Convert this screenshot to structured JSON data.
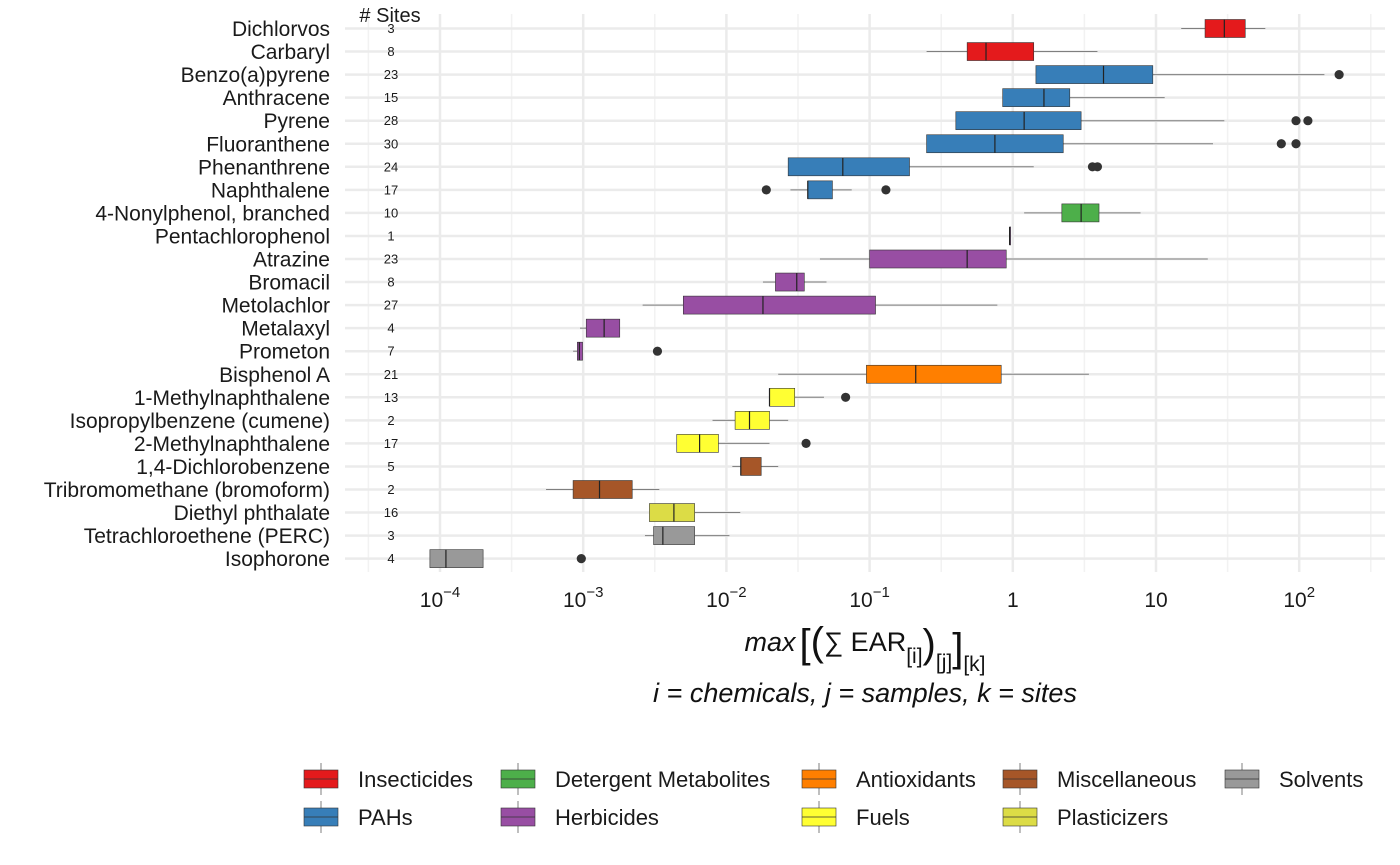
{
  "chart_data": {
    "type": "boxplot",
    "orientation": "horizontal",
    "x_scale": "log10",
    "xlim": [
      3e-05,
      450
    ],
    "grid": true,
    "legend_position": "bottom",
    "sites_header": "# Sites",
    "x_ticks": [
      {
        "value": 0.0001,
        "base": "10",
        "exp": "−4"
      },
      {
        "value": 0.001,
        "base": "10",
        "exp": "−3"
      },
      {
        "value": 0.01,
        "base": "10",
        "exp": "−2"
      },
      {
        "value": 0.1,
        "base": "10",
        "exp": "−1"
      },
      {
        "value": 1,
        "base": "1",
        "exp": ""
      },
      {
        "value": 10,
        "base": "10",
        "exp": ""
      },
      {
        "value": 100,
        "base": "10",
        "exp": "2"
      }
    ],
    "xlabel": {
      "max": "max",
      "sum": "∑ EAR",
      "sub_i": "[i]",
      "sub_j": "[j]",
      "sub_k": "[k]"
    },
    "xlabel_sub": "i = chemicals, j = samples, k = sites",
    "groups": [
      {
        "name": "Insecticides",
        "color": "#E41A1C"
      },
      {
        "name": "PAHs",
        "color": "#377EB8"
      },
      {
        "name": "Detergent Metabolites",
        "color": "#4DAF4A"
      },
      {
        "name": "Herbicides",
        "color": "#984EA3"
      },
      {
        "name": "Antioxidants",
        "color": "#FF7F00"
      },
      {
        "name": "Fuels",
        "color": "#FFFF33"
      },
      {
        "name": "Miscellaneous",
        "color": "#A65628"
      },
      {
        "name": "Plasticizers",
        "color": "#DCDC46"
      },
      {
        "name": "Solvents",
        "color": "#999999"
      }
    ],
    "chemicals": [
      {
        "name": "Dichlorvos",
        "sites": "3",
        "group": "Insecticides",
        "whisker_low": 15,
        "q1": 22,
        "median": 30,
        "q3": 42,
        "whisker_high": 58,
        "outliers": []
      },
      {
        "name": "Carbaryl",
        "sites": "8",
        "group": "Insecticides",
        "whisker_low": 0.25,
        "q1": 0.48,
        "median": 0.65,
        "q3": 1.4,
        "whisker_high": 3.9,
        "outliers": []
      },
      {
        "name": "Benzo(a)pyrene",
        "sites": "23",
        "group": "PAHs",
        "whisker_low": 1.45,
        "q1": 1.45,
        "median": 4.3,
        "q3": 9.5,
        "whisker_high": 150,
        "outliers": [
          190
        ]
      },
      {
        "name": "Anthracene",
        "sites": "15",
        "group": "PAHs",
        "whisker_low": 0.85,
        "q1": 0.85,
        "median": 1.65,
        "q3": 2.5,
        "whisker_high": 11.5,
        "outliers": []
      },
      {
        "name": "Pyrene",
        "sites": "28",
        "group": "PAHs",
        "whisker_low": 0.4,
        "q1": 0.4,
        "median": 1.2,
        "q3": 3.0,
        "whisker_high": 30,
        "outliers": [
          95,
          115
        ]
      },
      {
        "name": "Fluoranthene",
        "sites": "30",
        "group": "PAHs",
        "whisker_low": 0.25,
        "q1": 0.25,
        "median": 0.75,
        "q3": 2.25,
        "whisker_high": 25,
        "outliers": [
          75,
          95
        ]
      },
      {
        "name": "Phenanthrene",
        "sites": "24",
        "group": "PAHs",
        "whisker_low": 0.027,
        "q1": 0.027,
        "median": 0.065,
        "q3": 0.19,
        "whisker_high": 1.4,
        "outliers": [
          3.6,
          3.9
        ]
      },
      {
        "name": "Naphthalene",
        "sites": "17",
        "group": "PAHs",
        "whisker_low": 0.028,
        "q1": 0.037,
        "median": 0.037,
        "q3": 0.055,
        "whisker_high": 0.075,
        "outliers": [
          0.019,
          0.13
        ]
      },
      {
        "name": "4-Nonylphenol, branched",
        "sites": "10",
        "group": "Detergent Metabolites",
        "whisker_low": 1.2,
        "q1": 2.2,
        "median": 3.0,
        "q3": 4.0,
        "whisker_high": 7.8,
        "outliers": []
      },
      {
        "name": "Pentachlorophenol",
        "sites": "1",
        "group": "Herbicides",
        "whisker_low": 0.95,
        "q1": 0.95,
        "median": 0.95,
        "q3": 0.95,
        "whisker_high": 0.95,
        "outliers": []
      },
      {
        "name": "Atrazine",
        "sites": "23",
        "group": "Herbicides",
        "whisker_low": 0.045,
        "q1": 0.1,
        "median": 0.48,
        "q3": 0.9,
        "whisker_high": 23,
        "outliers": []
      },
      {
        "name": "Bromacil",
        "sites": "8",
        "group": "Herbicides",
        "whisker_low": 0.018,
        "q1": 0.022,
        "median": 0.031,
        "q3": 0.035,
        "whisker_high": 0.05,
        "outliers": []
      },
      {
        "name": "Metolachlor",
        "sites": "27",
        "group": "Herbicides",
        "whisker_low": 0.0026,
        "q1": 0.005,
        "median": 0.018,
        "q3": 0.11,
        "whisker_high": 0.78,
        "outliers": []
      },
      {
        "name": "Metalaxyl",
        "sites": "4",
        "group": "Herbicides",
        "whisker_low": 0.00095,
        "q1": 0.00105,
        "median": 0.0014,
        "q3": 0.0018,
        "whisker_high": 0.0018,
        "outliers": []
      },
      {
        "name": "Prometon",
        "sites": "7",
        "group": "Herbicides",
        "whisker_low": 0.00085,
        "q1": 0.00091,
        "median": 0.00094,
        "q3": 0.00099,
        "whisker_high": 0.00099,
        "outliers": [
          0.0033
        ]
      },
      {
        "name": "Bisphenol A",
        "sites": "21",
        "group": "Antioxidants",
        "whisker_low": 0.023,
        "q1": 0.095,
        "median": 0.21,
        "q3": 0.83,
        "whisker_high": 3.4,
        "outliers": []
      },
      {
        "name": "1-Methylnaphthalene",
        "sites": "13",
        "group": "Fuels",
        "whisker_low": 0.02,
        "q1": 0.02,
        "median": 0.02,
        "q3": 0.03,
        "whisker_high": 0.048,
        "outliers": [
          0.068
        ]
      },
      {
        "name": "Isopropylbenzene (cumene)",
        "sites": "2",
        "group": "Fuels",
        "whisker_low": 0.008,
        "q1": 0.0115,
        "median": 0.0145,
        "q3": 0.02,
        "whisker_high": 0.027,
        "outliers": []
      },
      {
        "name": "2-Methylnaphthalene",
        "sites": "17",
        "group": "Fuels",
        "whisker_low": 0.0045,
        "q1": 0.0045,
        "median": 0.0065,
        "q3": 0.0088,
        "whisker_high": 0.02,
        "outliers": [
          0.036
        ]
      },
      {
        "name": "1,4-Dichlorobenzene",
        "sites": "5",
        "group": "Miscellaneous",
        "whisker_low": 0.011,
        "q1": 0.0126,
        "median": 0.0126,
        "q3": 0.0175,
        "whisker_high": 0.023,
        "outliers": []
      },
      {
        "name": "Tribromomethane (bromoform)",
        "sites": "2",
        "group": "Miscellaneous",
        "whisker_low": 0.00055,
        "q1": 0.00085,
        "median": 0.0013,
        "q3": 0.0022,
        "whisker_high": 0.0034,
        "outliers": []
      },
      {
        "name": "Diethyl phthalate",
        "sites": "16",
        "group": "Plasticizers",
        "whisker_low": 0.0029,
        "q1": 0.0029,
        "median": 0.0043,
        "q3": 0.006,
        "whisker_high": 0.0125,
        "outliers": []
      },
      {
        "name": "Tetrachloroethene (PERC)",
        "sites": "3",
        "group": "Solvents",
        "whisker_low": 0.0027,
        "q1": 0.0031,
        "median": 0.0036,
        "q3": 0.006,
        "whisker_high": 0.0105,
        "outliers": []
      },
      {
        "name": "Isophorone",
        "sites": "4",
        "group": "Solvents",
        "whisker_low": 8.5e-05,
        "q1": 8.5e-05,
        "median": 0.00011,
        "q3": 0.0002,
        "whisker_high": 0.0002,
        "outliers": [
          0.00097
        ]
      }
    ]
  }
}
